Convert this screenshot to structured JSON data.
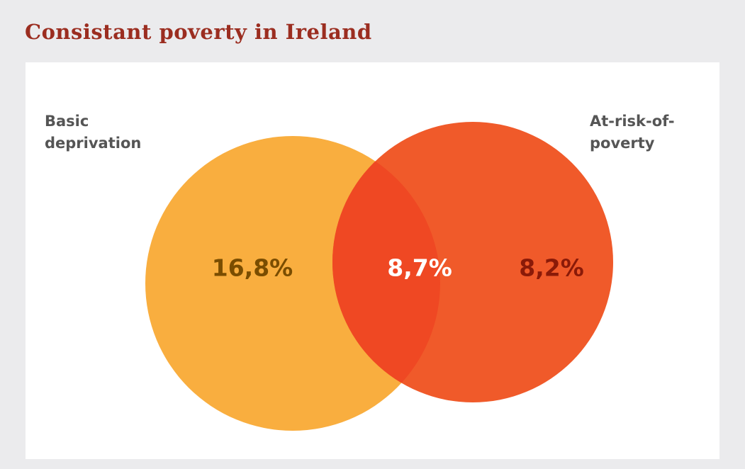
{
  "chart_data": {
    "type": "venn",
    "title": "Consistant poverty in Ireland",
    "categories": [
      "Basic deprivation",
      "At-risk-of-poverty"
    ],
    "values": [
      16.8,
      8.2
    ],
    "value_labels": [
      "16,8%",
      "8,2%"
    ],
    "colors": [
      "#f9ae3f",
      "#f05a2a"
    ],
    "intersection": {
      "value": 8.7,
      "value_label": "8,7%",
      "color": "#ef4823"
    }
  }
}
